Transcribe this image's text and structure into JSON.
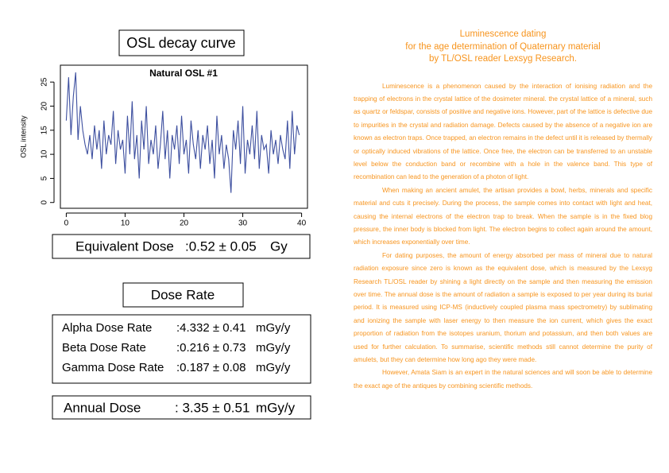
{
  "title_box": "OSL decay curve",
  "chart_data": {
    "type": "line",
    "title": "Natural OSL #1",
    "y_label": "OSL intensity",
    "color": "#3d4f9f",
    "x": [
      0,
      0.4,
      0.8,
      1.2,
      1.6,
      2,
      2.4,
      2.8,
      3.2,
      3.6,
      4,
      4.4,
      4.8,
      5.2,
      5.6,
      6,
      6.4,
      6.8,
      7.2,
      7.6,
      8,
      8.4,
      8.8,
      9.2,
      9.6,
      10,
      10.4,
      10.8,
      11.2,
      11.6,
      12,
      12.4,
      12.8,
      13.2,
      13.6,
      14,
      14.4,
      14.8,
      15.2,
      15.6,
      16,
      16.4,
      16.8,
      17.2,
      17.6,
      18,
      18.4,
      18.8,
      19.2,
      19.6,
      20,
      20.4,
      20.8,
      21.2,
      21.6,
      22,
      22.4,
      22.8,
      23.2,
      23.6,
      24,
      24.4,
      24.8,
      25.2,
      25.6,
      26,
      26.4,
      26.8,
      27.2,
      27.6,
      28,
      28.4,
      28.8,
      29.2,
      29.6,
      30,
      30.4,
      30.8,
      31.2,
      31.6,
      32,
      32.4,
      32.8,
      33.2,
      33.6,
      34,
      34.4,
      34.8,
      35.2,
      35.6,
      36,
      36.4,
      36.8,
      37.2,
      37.6,
      38,
      38.4,
      38.8,
      39.2,
      39.6
    ],
    "values": [
      17,
      26,
      14,
      22,
      27,
      13,
      20,
      15,
      12,
      10,
      14,
      9,
      16,
      11,
      15,
      7,
      17,
      10,
      14,
      12,
      19,
      8,
      15,
      11,
      13,
      6,
      18,
      10,
      21,
      9,
      14,
      5,
      17,
      11,
      20,
      8,
      13,
      10,
      16,
      7,
      12,
      19,
      9,
      15,
      5,
      14,
      11,
      16,
      8,
      18,
      10,
      13,
      6,
      17,
      12,
      9,
      15,
      7,
      14,
      11,
      16,
      8,
      13,
      5,
      18,
      10,
      14,
      7,
      12,
      9,
      2,
      15,
      11,
      17,
      8,
      20,
      6,
      13,
      10,
      16,
      9,
      19,
      7,
      14,
      11,
      12,
      6,
      15,
      10,
      13,
      8,
      14,
      11,
      9,
      17,
      7,
      19,
      10,
      16,
      14
    ],
    "xlim": [
      -1,
      41
    ],
    "ylim": [
      -1.2,
      28.5
    ],
    "xticks": [
      0,
      10,
      20,
      30,
      40
    ],
    "yticks": [
      0,
      5,
      10,
      15,
      20,
      25
    ]
  },
  "equivalent_dose": {
    "label": "Equivalent Dose",
    "value": ":0.52 ± 0.05",
    "unit": "Gy"
  },
  "dose_rate_title": "Dose Rate",
  "dose_rates": [
    {
      "label": "Alpha Dose Rate",
      "value": ":4.332 ± 0.41",
      "unit": "mGy/y"
    },
    {
      "label": "Beta Dose Rate",
      "value": ":0.216 ± 0.73",
      "unit": "mGy/y"
    },
    {
      "label": "Gamma Dose Rate",
      "value": ":0.187 ± 0.08",
      "unit": "mGy/y"
    }
  ],
  "annual_dose": {
    "label": "Annual Dose",
    "value": ": 3.35 ± 0.51",
    "unit": "mGy/y"
  },
  "article": {
    "title": [
      "Luminescence dating",
      "for the age determination of Quaternary material",
      "by TL/OSL reader Lexsyg Research."
    ],
    "paragraphs": [
      "Luminescence is a phenomenon caused by the interaction of ionising radiation and the trapping of electrons in the crystal lattice of the dosimeter mineral. the crystal lattice of a mineral, such as quartz or feldspar, consists of positive and negative ions. However, part of the lattice is defective due to impurities in the crystal and radiation damage. Defects caused by the absence of a negative ion are known as electron traps. Once trapped, an electron remains in the defect until it is released by thermally or optically induced vibrations of the lattice. Once free, the electron can be transferred to an unstable level below the conduction band or recombine with a hole in the valence band. This type of recombination can lead to the generation of a photon of light.",
      "When making an ancient amulet, the artisan provides a bowl, herbs, minerals and specific material and cuts it precisely. During the process, the sample comes into contact with light and heat, causing the internal electrons of the electron trap to break. When the sample is in the fixed blog pressure, the inner body is blocked from light. The electron begins to collect again around the amount, which increases exponentially over time.",
      "For dating purposes, the amount of energy absorbed per mass of mineral due to natural radiation exposure since zero is known as the equivalent dose, which is measured by the Lexsyg Research TL/OSL reader by shining a light directly on the sample and then measuring the emission over time. The annual dose is the amount of radiation a sample is exposed to per year during its burial period. It is measured using ICP-MS (inductively coupled plasma mass spectrometry) by sublimating and ionizing the sample with laser energy to then measure the ion current, which gives the exact proportion of radiation from the isotopes uranium, thorium and potassium, and then both values are used for further calculation. To summarise, scientific methods still cannot determine the purity of amulets, but they can determine how long ago they were made.",
      "However, Amata Siam is an expert in the natural sciences and will soon be able to determine the exact age of the antiques by combining scientific methods."
    ]
  }
}
